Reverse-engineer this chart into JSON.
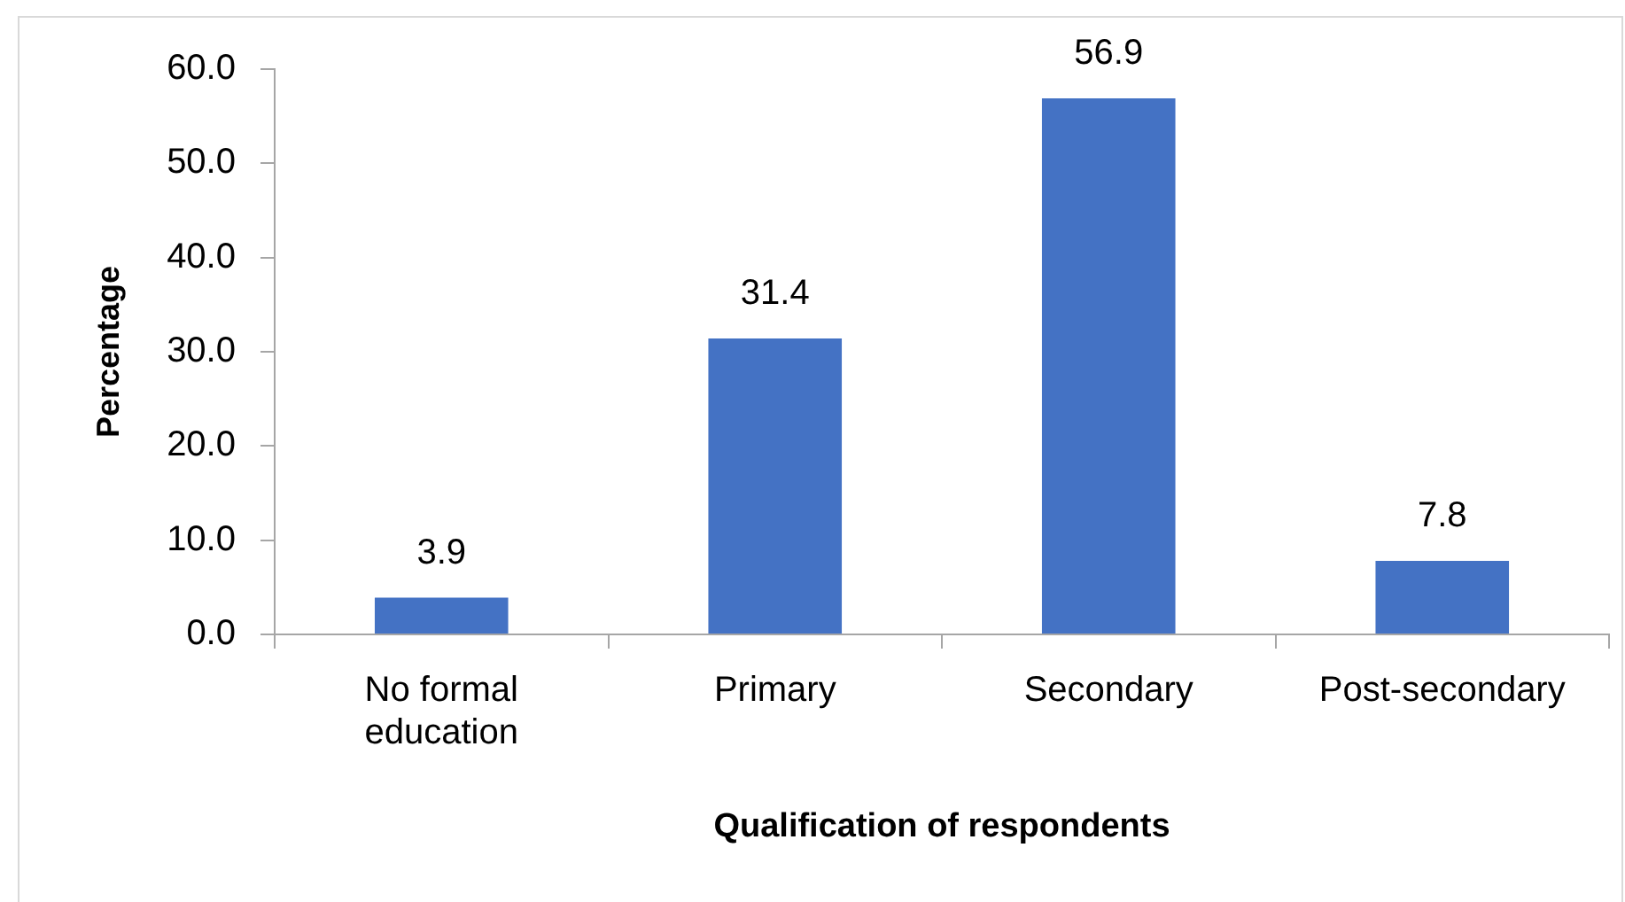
{
  "chart_data": {
    "type": "bar",
    "xlabel": "Qualification of respondents",
    "ylabel": "Percentage",
    "categories": [
      "No formal education",
      "Primary",
      "Secondary",
      "Post-secondary"
    ],
    "values": [
      3.9,
      31.4,
      56.9,
      7.8
    ],
    "color": "#4472c4",
    "ylim": [
      0,
      60
    ],
    "yticks": [
      {
        "value": 0,
        "label": "0.0"
      },
      {
        "value": 10,
        "label": "10.0"
      },
      {
        "value": 20,
        "label": "20.0"
      },
      {
        "value": 30,
        "label": "30.0"
      },
      {
        "value": 40,
        "label": "40.0"
      },
      {
        "value": 50,
        "label": "50.0"
      },
      {
        "value": 60,
        "label": "60.0"
      }
    ],
    "grid": false,
    "legend": false,
    "data_labels": true
  }
}
